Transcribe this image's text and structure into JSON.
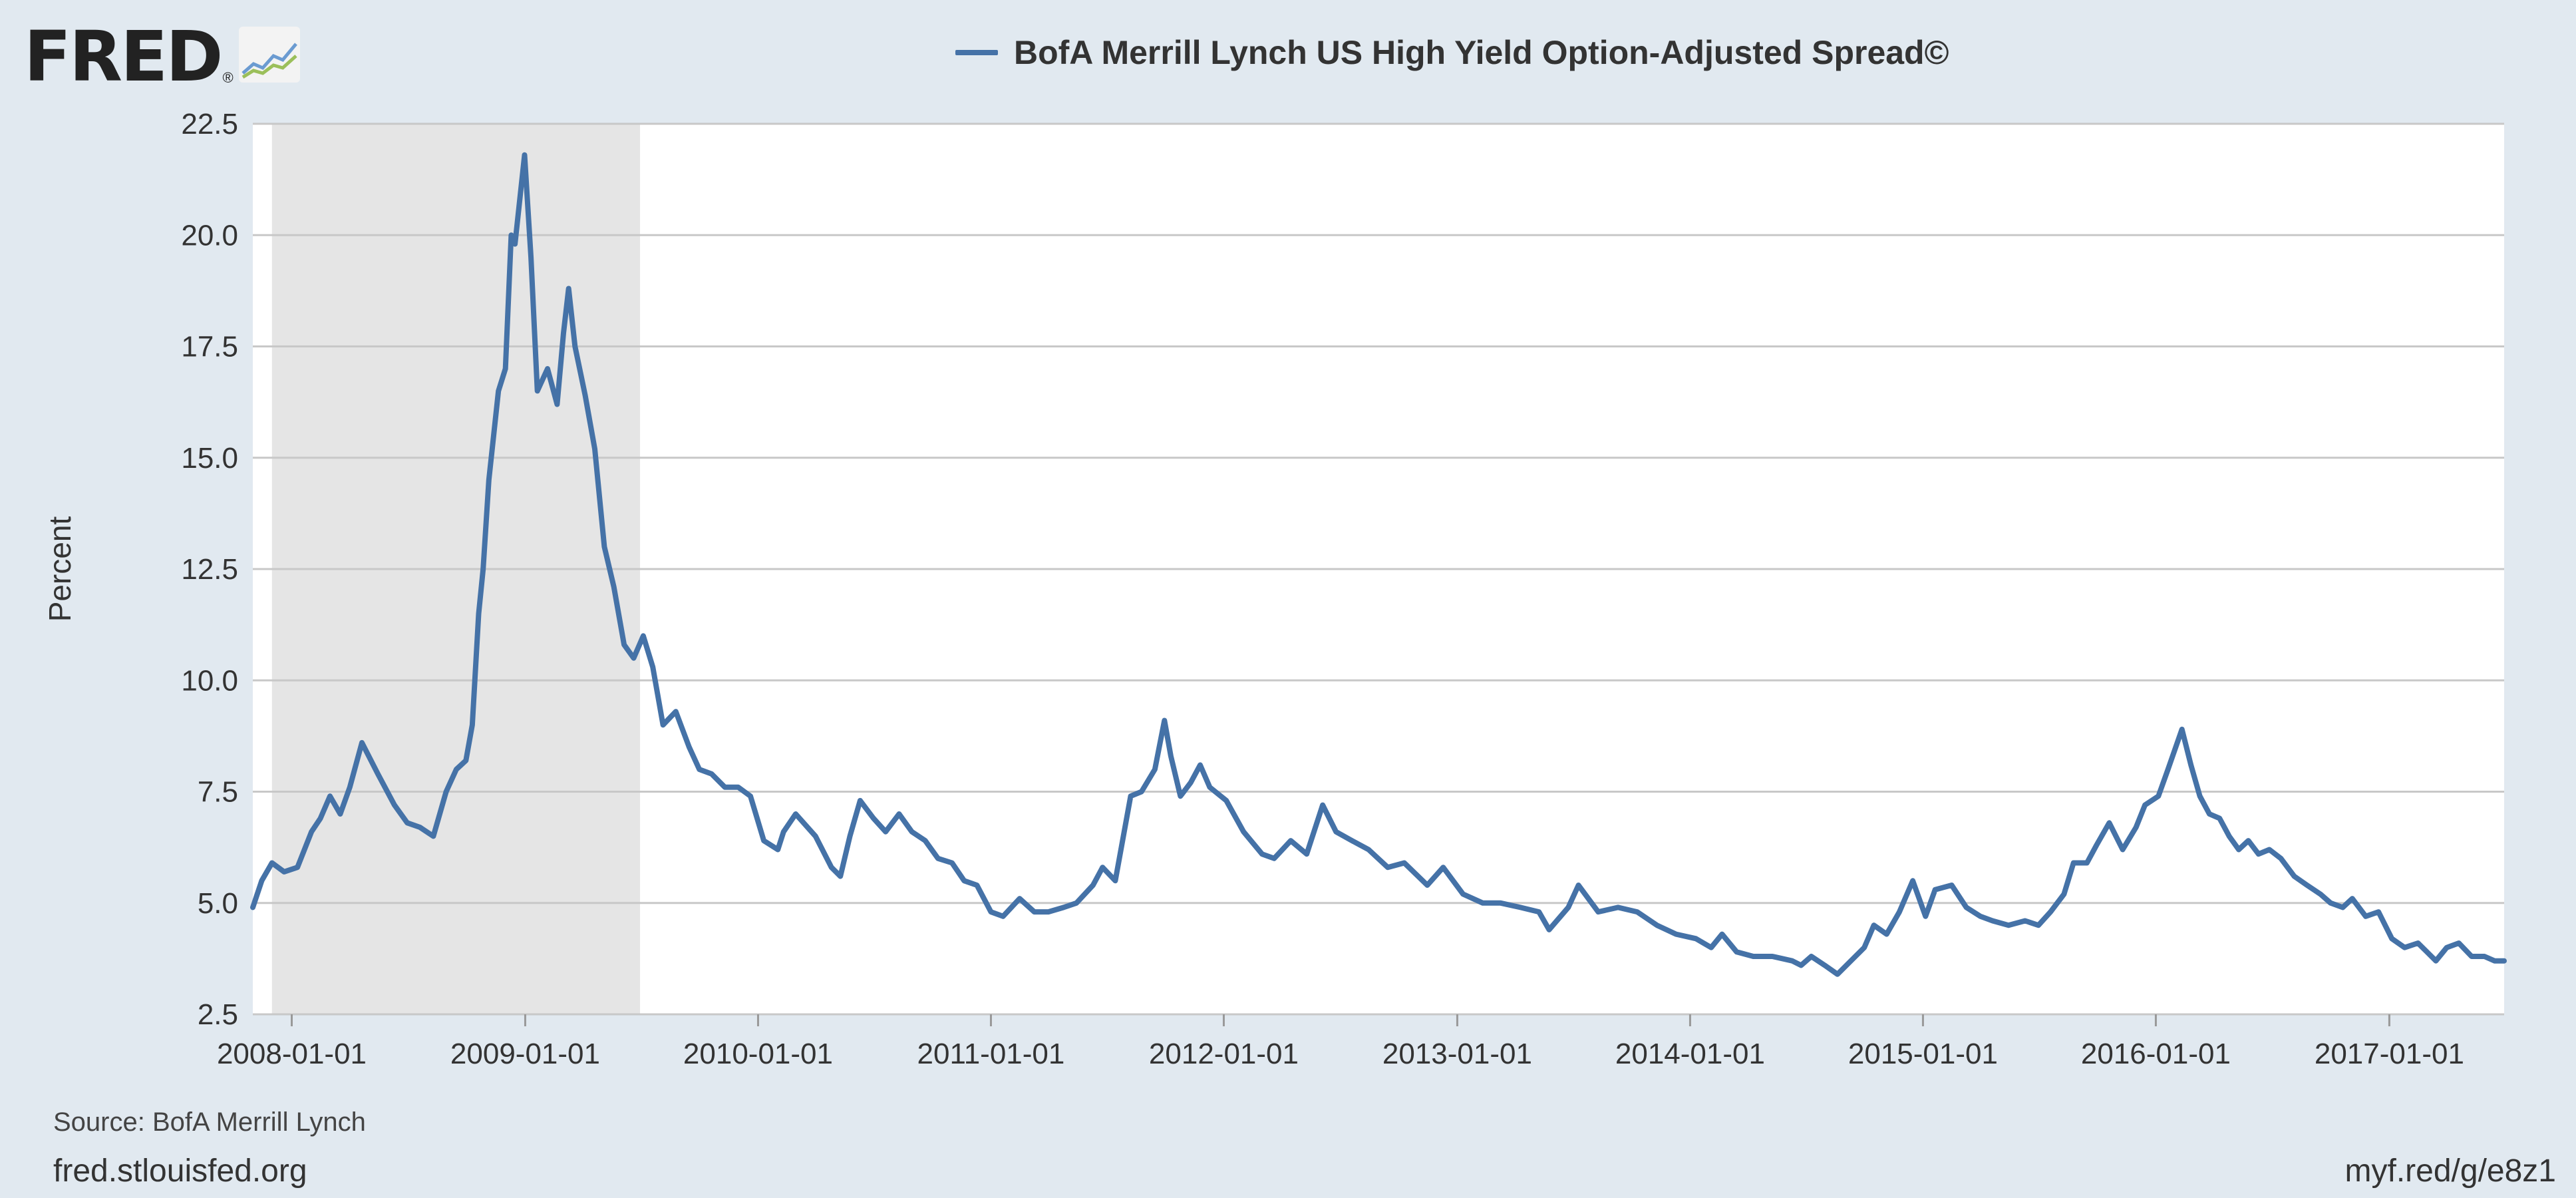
{
  "logo": {
    "text": "FRED",
    "registered": "®"
  },
  "footer": {
    "source": "Source: BofA Merrill Lynch",
    "site": "fred.stlouisfed.org",
    "shortlink": "myf.red/g/e8z1"
  },
  "colors": {
    "series": "#4572a7",
    "recession": "#e5e5e5",
    "plot_bg": "#ffffff",
    "page_bg": "#e1e9f0",
    "grid": "#c8c8c8"
  },
  "chart_data": {
    "type": "line",
    "title": "",
    "ylabel": "Percent",
    "xlabel": "",
    "ylim": [
      2.5,
      22.5
    ],
    "xlim": [
      "2007-11-01",
      "2017-06-30"
    ],
    "yticks": [
      "2.5",
      "5.0",
      "7.5",
      "10.0",
      "12.5",
      "15.0",
      "17.5",
      "20.0",
      "22.5"
    ],
    "xticks": [
      "2008-01-01",
      "2009-01-01",
      "2010-01-01",
      "2011-01-01",
      "2012-01-01",
      "2013-01-01",
      "2014-01-01",
      "2015-01-01",
      "2016-01-01",
      "2017-01-01"
    ],
    "grid": "horizontal",
    "legend_position": "top-center",
    "recession_shading": [
      {
        "start": "2007-12-01",
        "end": "2009-06-30"
      }
    ],
    "series": [
      {
        "name": "BofA Merrill Lynch US High Yield Option-Adjusted Spread©",
        "x": [
          "2007-11-01",
          "2007-11-15",
          "2007-12-01",
          "2007-12-20",
          "2008-01-10",
          "2008-02-01",
          "2008-02-15",
          "2008-03-01",
          "2008-03-17",
          "2008-04-01",
          "2008-04-20",
          "2008-05-15",
          "2008-06-10",
          "2008-06-30",
          "2008-07-20",
          "2008-08-10",
          "2008-08-30",
          "2008-09-15",
          "2008-09-30",
          "2008-10-10",
          "2008-10-20",
          "2008-10-27",
          "2008-11-05",
          "2008-11-20",
          "2008-12-01",
          "2008-12-10",
          "2008-12-16",
          "2008-12-31",
          "2009-01-10",
          "2009-01-20",
          "2009-02-05",
          "2009-02-20",
          "2009-03-02",
          "2009-03-10",
          "2009-03-20",
          "2009-04-05",
          "2009-04-20",
          "2009-05-05",
          "2009-05-20",
          "2009-06-05",
          "2009-06-20",
          "2009-07-05",
          "2009-07-20",
          "2009-08-05",
          "2009-08-25",
          "2009-09-15",
          "2009-10-01",
          "2009-10-20",
          "2009-11-10",
          "2009-12-01",
          "2009-12-20",
          "2010-01-10",
          "2010-02-01",
          "2010-02-10",
          "2010-03-01",
          "2010-04-01",
          "2010-04-26",
          "2010-05-10",
          "2010-05-25",
          "2010-06-10",
          "2010-07-01",
          "2010-07-20",
          "2010-08-10",
          "2010-08-30",
          "2010-09-20",
          "2010-10-10",
          "2010-11-01",
          "2010-11-20",
          "2010-12-10",
          "2011-01-01",
          "2011-01-20",
          "2011-02-15",
          "2011-03-10",
          "2011-04-01",
          "2011-04-25",
          "2011-05-15",
          "2011-06-10",
          "2011-06-25",
          "2011-07-15",
          "2011-08-08",
          "2011-08-25",
          "2011-09-15",
          "2011-09-30",
          "2011-10-10",
          "2011-10-25",
          "2011-11-10",
          "2011-11-25",
          "2011-12-10",
          "2012-01-05",
          "2012-02-01",
          "2012-03-01",
          "2012-03-20",
          "2012-04-15",
          "2012-05-10",
          "2012-06-04",
          "2012-06-25",
          "2012-07-20",
          "2012-08-15",
          "2012-09-14",
          "2012-10-10",
          "2012-11-15",
          "2012-12-10",
          "2013-01-10",
          "2013-02-10",
          "2013-03-10",
          "2013-04-10",
          "2013-05-09",
          "2013-05-25",
          "2013-06-24",
          "2013-07-10",
          "2013-08-10",
          "2013-09-10",
          "2013-10-10",
          "2013-11-10",
          "2013-12-10",
          "2014-01-10",
          "2014-02-03",
          "2014-02-20",
          "2014-03-15",
          "2014-04-10",
          "2014-05-10",
          "2014-06-10",
          "2014-06-24",
          "2014-07-10",
          "2014-07-31",
          "2014-08-20",
          "2014-09-10",
          "2014-10-01",
          "2014-10-16",
          "2014-11-05",
          "2014-11-25",
          "2014-12-16",
          "2015-01-05",
          "2015-01-20",
          "2015-02-15",
          "2015-03-10",
          "2015-04-01",
          "2015-04-20",
          "2015-05-15",
          "2015-06-10",
          "2015-07-01",
          "2015-07-20",
          "2015-08-10",
          "2015-08-25",
          "2015-09-15",
          "2015-09-30",
          "2015-10-20",
          "2015-11-10",
          "2015-12-01",
          "2015-12-15",
          "2016-01-05",
          "2016-01-20",
          "2016-02-11",
          "2016-02-25",
          "2016-03-10",
          "2016-03-25",
          "2016-04-10",
          "2016-04-25",
          "2016-05-10",
          "2016-05-25",
          "2016-06-10",
          "2016-06-27",
          "2016-07-15",
          "2016-08-05",
          "2016-08-25",
          "2016-09-15",
          "2016-10-01",
          "2016-10-20",
          "2016-11-04",
          "2016-11-25",
          "2016-12-15",
          "2017-01-05",
          "2017-01-25",
          "2017-02-15",
          "2017-03-01",
          "2017-03-15",
          "2017-04-01",
          "2017-04-20",
          "2017-05-10",
          "2017-05-30",
          "2017-06-15",
          "2017-06-30"
        ],
        "values": [
          4.9,
          5.5,
          5.9,
          5.7,
          5.8,
          6.6,
          6.9,
          7.4,
          7.0,
          7.6,
          8.6,
          7.9,
          7.2,
          6.8,
          6.7,
          6.5,
          7.5,
          8.0,
          8.2,
          9.0,
          11.5,
          12.5,
          14.5,
          16.5,
          17.0,
          20.0,
          19.8,
          21.8,
          19.5,
          16.5,
          17.0,
          16.2,
          17.8,
          18.8,
          17.5,
          16.4,
          15.2,
          13.0,
          12.1,
          10.8,
          10.5,
          11.0,
          10.3,
          9.0,
          9.3,
          8.5,
          8.0,
          7.9,
          7.6,
          7.6,
          7.4,
          6.4,
          6.2,
          6.6,
          7.0,
          6.5,
          5.8,
          5.6,
          6.5,
          7.3,
          6.9,
          6.6,
          7.0,
          6.6,
          6.4,
          6.0,
          5.9,
          5.5,
          5.4,
          4.8,
          4.7,
          5.1,
          4.8,
          4.8,
          4.9,
          5.0,
          5.4,
          5.8,
          5.5,
          7.4,
          7.5,
          8.0,
          9.1,
          8.3,
          7.4,
          7.7,
          8.1,
          7.6,
          7.3,
          6.6,
          6.1,
          6.0,
          6.4,
          6.1,
          7.2,
          6.6,
          6.4,
          6.2,
          5.8,
          5.9,
          5.4,
          5.8,
          5.2,
          5.0,
          5.0,
          4.9,
          4.8,
          4.4,
          4.9,
          5.4,
          4.8,
          4.9,
          4.8,
          4.5,
          4.3,
          4.2,
          4.0,
          4.3,
          3.9,
          3.8,
          3.8,
          3.7,
          3.6,
          3.8,
          3.6,
          3.4,
          3.7,
          4.0,
          4.5,
          4.3,
          4.8,
          5.5,
          4.7,
          5.3,
          5.4,
          4.9,
          4.7,
          4.6,
          4.5,
          4.6,
          4.5,
          4.8,
          5.2,
          5.9,
          5.9,
          6.3,
          6.8,
          6.2,
          6.7,
          7.2,
          7.4,
          8.0,
          8.9,
          8.1,
          7.4,
          7.0,
          6.9,
          6.5,
          6.2,
          6.4,
          6.1,
          6.2,
          6.0,
          5.6,
          5.4,
          5.2,
          5.0,
          4.9,
          5.1,
          4.7,
          4.8,
          4.2,
          4.0,
          4.1,
          3.9,
          3.7,
          4.0,
          4.1,
          3.8,
          3.8,
          3.7,
          3.7
        ]
      }
    ]
  }
}
